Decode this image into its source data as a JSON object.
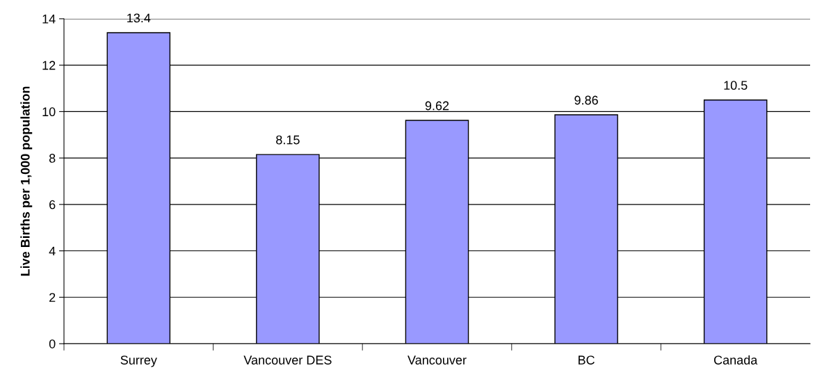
{
  "chart_data": {
    "type": "bar",
    "ylabel": "Live Births per 1,000 population",
    "categories": [
      "Surrey",
      "Vancouver DES",
      "Vancouver",
      "BC",
      "Canada"
    ],
    "values": [
      13.4,
      8.15,
      9.62,
      9.86,
      10.5
    ],
    "color": "#9999ff",
    "ylim": [
      0,
      14
    ],
    "yticks": [
      0,
      2,
      4,
      6,
      8,
      10,
      12,
      14
    ],
    "grid": "y",
    "data_labels": true,
    "legend": false
  }
}
